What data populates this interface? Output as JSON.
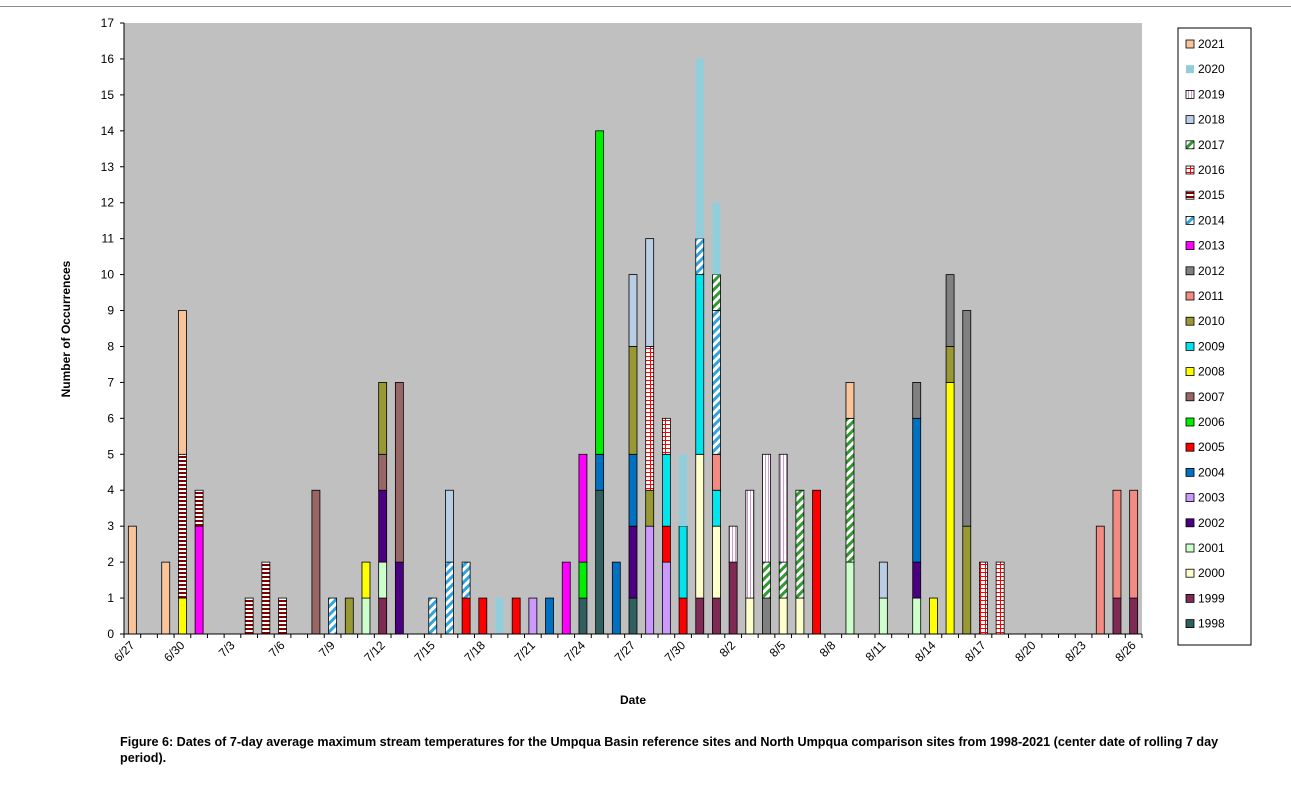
{
  "chart_data": {
    "type": "bar",
    "stacked": true,
    "title": "",
    "xlabel": "Date",
    "ylabel": "Number of Occurrences",
    "ylim": [
      0,
      17
    ],
    "yticks": [
      0,
      1,
      2,
      3,
      4,
      5,
      6,
      7,
      8,
      9,
      10,
      11,
      12,
      13,
      14,
      15,
      16,
      17
    ],
    "dates": [
      "6/27",
      "6/28",
      "6/29",
      "6/30",
      "7/1",
      "7/2",
      "7/3",
      "7/4",
      "7/5",
      "7/6",
      "7/7",
      "7/8",
      "7/9",
      "7/10",
      "7/11",
      "7/12",
      "7/13",
      "7/14",
      "7/15",
      "7/16",
      "7/17",
      "7/18",
      "7/19",
      "7/20",
      "7/21",
      "7/22",
      "7/23",
      "7/24",
      "7/25",
      "7/26",
      "7/27",
      "7/28",
      "7/29",
      "7/30",
      "7/31",
      "8/1",
      "8/2",
      "8/3",
      "8/4",
      "8/5",
      "8/6",
      "8/7",
      "8/8",
      "8/9",
      "8/10",
      "8/11",
      "8/12",
      "8/13",
      "8/14",
      "8/15",
      "8/16",
      "8/17",
      "8/18",
      "8/19",
      "8/20",
      "8/21",
      "8/22",
      "8/23",
      "8/24",
      "8/25",
      "8/26"
    ],
    "x_tick_labels": [
      "6/27",
      "6/30",
      "7/3",
      "7/6",
      "7/9",
      "7/12",
      "7/15",
      "7/18",
      "7/21",
      "7/24",
      "7/27",
      "7/30",
      "8/2",
      "8/5",
      "8/8",
      "8/11",
      "8/14",
      "8/17",
      "8/20",
      "8/23",
      "8/26"
    ],
    "grid": false,
    "legend_position": "right",
    "plot_background": "#c0c0c0",
    "series": [
      {
        "name": "2021",
        "color": "#f9c49a",
        "pattern": "solid"
      },
      {
        "name": "2020",
        "color": "#92cddc",
        "pattern": "solid-noborder"
      },
      {
        "name": "2019",
        "color": "#cc99cc",
        "pattern": "vstripe"
      },
      {
        "name": "2018",
        "color": "#b9cde5",
        "pattern": "solid"
      },
      {
        "name": "2017",
        "color": "#339933",
        "pattern": "diag"
      },
      {
        "name": "2016",
        "color": "#ff0000",
        "pattern": "grid"
      },
      {
        "name": "2015",
        "color": "#800000",
        "pattern": "hstripe"
      },
      {
        "name": "2014",
        "color": "#33a3dc",
        "pattern": "diag"
      },
      {
        "name": "2013",
        "color": "#ff00ff",
        "pattern": "solid"
      },
      {
        "name": "2012",
        "color": "#808080",
        "pattern": "solid"
      },
      {
        "name": "2011",
        "color": "#f28b82",
        "pattern": "solid"
      },
      {
        "name": "2010",
        "color": "#999933",
        "pattern": "solid"
      },
      {
        "name": "2009",
        "color": "#00e5ee",
        "pattern": "solid"
      },
      {
        "name": "2008",
        "color": "#ffff00",
        "pattern": "solid"
      },
      {
        "name": "2007",
        "color": "#996666",
        "pattern": "solid"
      },
      {
        "name": "2006",
        "color": "#00ee00",
        "pattern": "solid"
      },
      {
        "name": "2005",
        "color": "#ff0000",
        "pattern": "solid"
      },
      {
        "name": "2004",
        "color": "#0070c0",
        "pattern": "solid"
      },
      {
        "name": "2003",
        "color": "#cc99ff",
        "pattern": "solid"
      },
      {
        "name": "2002",
        "color": "#4b0082",
        "pattern": "solid"
      },
      {
        "name": "2001",
        "color": "#ccffcc",
        "pattern": "solid"
      },
      {
        "name": "2000",
        "color": "#ffffcc",
        "pattern": "solid"
      },
      {
        "name": "1999",
        "color": "#7f2a54",
        "pattern": "solid"
      },
      {
        "name": "1998",
        "color": "#2f5f5f",
        "pattern": "solid"
      }
    ],
    "bars": [
      {
        "date": "6/27",
        "stack": [
          [
            "2021",
            3
          ]
        ]
      },
      {
        "date": "6/29",
        "stack": [
          [
            "2021",
            2
          ]
        ]
      },
      {
        "date": "6/30",
        "stack": [
          [
            "2008",
            1
          ],
          [
            "2015",
            4
          ],
          [
            "2021",
            4
          ]
        ]
      },
      {
        "date": "7/1",
        "stack": [
          [
            "2013",
            3
          ],
          [
            "2015",
            1
          ]
        ]
      },
      {
        "date": "7/4",
        "stack": [
          [
            "2015",
            1
          ]
        ]
      },
      {
        "date": "7/5",
        "stack": [
          [
            "2015",
            2
          ]
        ]
      },
      {
        "date": "7/6",
        "stack": [
          [
            "2015",
            1
          ]
        ]
      },
      {
        "date": "7/8",
        "stack": [
          [
            "2007",
            4
          ]
        ]
      },
      {
        "date": "7/9",
        "stack": [
          [
            "2014",
            1
          ]
        ]
      },
      {
        "date": "7/10",
        "stack": [
          [
            "2010",
            1
          ]
        ]
      },
      {
        "date": "7/11",
        "stack": [
          [
            "2001",
            1
          ],
          [
            "2008",
            1
          ]
        ]
      },
      {
        "date": "7/12",
        "stack": [
          [
            "1999",
            1
          ],
          [
            "2001",
            1
          ],
          [
            "2002",
            2
          ],
          [
            "2007",
            1
          ],
          [
            "2010",
            2
          ]
        ]
      },
      {
        "date": "7/13",
        "stack": [
          [
            "2002",
            2
          ],
          [
            "2007",
            5
          ]
        ]
      },
      {
        "date": "7/15",
        "stack": [
          [
            "2014",
            1
          ]
        ]
      },
      {
        "date": "7/16",
        "stack": [
          [
            "2014",
            2
          ],
          [
            "2018",
            2
          ]
        ]
      },
      {
        "date": "7/17",
        "stack": [
          [
            "2005",
            1
          ],
          [
            "2014",
            1
          ]
        ]
      },
      {
        "date": "7/18",
        "stack": [
          [
            "2005",
            1
          ]
        ]
      },
      {
        "date": "7/19",
        "stack": [
          [
            "2020",
            1
          ]
        ]
      },
      {
        "date": "7/20",
        "stack": [
          [
            "2005",
            1
          ]
        ]
      },
      {
        "date": "7/21",
        "stack": [
          [
            "2003",
            1
          ]
        ]
      },
      {
        "date": "7/22",
        "stack": [
          [
            "2004",
            1
          ]
        ]
      },
      {
        "date": "7/23",
        "stack": [
          [
            "2013",
            2
          ]
        ]
      },
      {
        "date": "7/24",
        "stack": [
          [
            "1998",
            1
          ],
          [
            "2006",
            1
          ],
          [
            "2013",
            3
          ]
        ]
      },
      {
        "date": "7/25",
        "stack": [
          [
            "1998",
            4
          ],
          [
            "2004",
            1
          ],
          [
            "2006",
            9
          ]
        ]
      },
      {
        "date": "7/26",
        "stack": [
          [
            "2004",
            2
          ]
        ]
      },
      {
        "date": "7/27",
        "stack": [
          [
            "1998",
            1
          ],
          [
            "2002",
            2
          ],
          [
            "2004",
            2
          ],
          [
            "2010",
            3
          ],
          [
            "2018",
            2
          ]
        ]
      },
      {
        "date": "7/28",
        "stack": [
          [
            "2003",
            3
          ],
          [
            "2010",
            1
          ],
          [
            "2016",
            4
          ],
          [
            "2018",
            3
          ]
        ]
      },
      {
        "date": "7/29",
        "stack": [
          [
            "2003",
            2
          ],
          [
            "2005",
            1
          ],
          [
            "2009",
            2
          ],
          [
            "2016",
            1
          ]
        ]
      },
      {
        "date": "7/30",
        "stack": [
          [
            "2005",
            1
          ],
          [
            "2009",
            2
          ],
          [
            "2020",
            2
          ]
        ]
      },
      {
        "date": "7/31",
        "stack": [
          [
            "1999",
            1
          ],
          [
            "2000",
            4
          ],
          [
            "2009",
            5
          ],
          [
            "2014",
            1
          ],
          [
            "2020",
            5
          ]
        ]
      },
      {
        "date": "8/1",
        "stack": [
          [
            "1999",
            1
          ],
          [
            "2000",
            2
          ],
          [
            "2009",
            1
          ],
          [
            "2011",
            1
          ],
          [
            "2014",
            4
          ],
          [
            "2017",
            1
          ],
          [
            "2020",
            2
          ]
        ]
      },
      {
        "date": "8/2",
        "stack": [
          [
            "1999",
            2
          ],
          [
            "2019",
            1
          ]
        ]
      },
      {
        "date": "8/3",
        "stack": [
          [
            "2000",
            1
          ],
          [
            "2019",
            3
          ]
        ]
      },
      {
        "date": "8/4",
        "stack": [
          [
            "2012",
            1
          ],
          [
            "2017",
            1
          ],
          [
            "2019",
            3
          ]
        ]
      },
      {
        "date": "8/5",
        "stack": [
          [
            "2000",
            1
          ],
          [
            "2017",
            1
          ],
          [
            "2019",
            3
          ]
        ]
      },
      {
        "date": "8/6",
        "stack": [
          [
            "2000",
            1
          ],
          [
            "2017",
            3
          ]
        ]
      },
      {
        "date": "8/7",
        "stack": [
          [
            "2005",
            4
          ]
        ]
      },
      {
        "date": "8/9",
        "stack": [
          [
            "2001",
            2
          ],
          [
            "2017",
            4
          ],
          [
            "2021",
            1
          ]
        ]
      },
      {
        "date": "8/11",
        "stack": [
          [
            "2001",
            1
          ],
          [
            "2018",
            1
          ]
        ]
      },
      {
        "date": "8/13",
        "stack": [
          [
            "2001",
            1
          ],
          [
            "2002",
            1
          ],
          [
            "2004",
            4
          ],
          [
            "2012",
            1
          ]
        ]
      },
      {
        "date": "8/14",
        "stack": [
          [
            "2008",
            1
          ]
        ]
      },
      {
        "date": "8/15",
        "stack": [
          [
            "2008",
            7
          ],
          [
            "2010",
            1
          ],
          [
            "2012",
            2
          ]
        ]
      },
      {
        "date": "8/16",
        "stack": [
          [
            "2010",
            3
          ],
          [
            "2012",
            6
          ]
        ]
      },
      {
        "date": "8/17",
        "stack": [
          [
            "2016",
            2
          ]
        ]
      },
      {
        "date": "8/18",
        "stack": [
          [
            "2016",
            2
          ]
        ]
      },
      {
        "date": "8/24",
        "stack": [
          [
            "2011",
            3
          ]
        ]
      },
      {
        "date": "8/25",
        "stack": [
          [
            "1999",
            1
          ],
          [
            "2011",
            3
          ]
        ]
      },
      {
        "date": "8/26",
        "stack": [
          [
            "1999",
            1
          ],
          [
            "2011",
            3
          ]
        ]
      }
    ]
  },
  "caption": {
    "text": "Figure 6:  Dates of 7-day average maximum stream temperatures for the Umpqua Basin reference sites and North Umpqua comparison sites from 1998-2021 (center date of rolling 7 day period)."
  }
}
